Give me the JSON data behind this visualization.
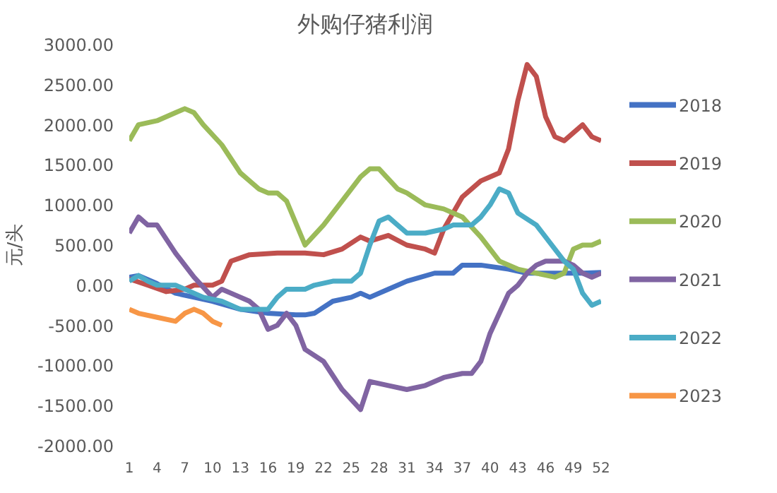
{
  "chart_data": {
    "type": "line",
    "title": "外购仔猪利润",
    "ylabel": "元/头",
    "xlim": [
      1,
      52
    ],
    "xticks": [
      1,
      4,
      7,
      10,
      13,
      16,
      19,
      22,
      25,
      28,
      31,
      34,
      37,
      40,
      43,
      46,
      49,
      52
    ],
    "ylim": [
      -2000,
      3000
    ],
    "yticks": [
      {
        "value": -2000,
        "label": "-2000.00"
      },
      {
        "value": -1500,
        "label": "-1500.00"
      },
      {
        "value": -1000,
        "label": "-1000.00"
      },
      {
        "value": -500,
        "label": "-500.00"
      },
      {
        "value": 0,
        "label": "0.00"
      },
      {
        "value": 500,
        "label": "500.00"
      },
      {
        "value": 1000,
        "label": "1000.00"
      },
      {
        "value": 1500,
        "label": "1500.00"
      },
      {
        "value": 2000,
        "label": "2000.00"
      },
      {
        "value": 2500,
        "label": "2500.00"
      },
      {
        "value": 3000,
        "label": "3000.00"
      }
    ],
    "grid": false,
    "legend": "right",
    "line_style": "solid",
    "marker": "none",
    "series": [
      {
        "name": "2018",
        "color": "#4472c4",
        "x": [
          1,
          2,
          4,
          6,
          8,
          10,
          13,
          16,
          19,
          20,
          21,
          23,
          25,
          26,
          27,
          29,
          31,
          34,
          36,
          37,
          39,
          42,
          44,
          47,
          50,
          52
        ],
        "values": [
          100,
          120,
          20,
          -100,
          -150,
          -200,
          -300,
          -350,
          -370,
          -370,
          -350,
          -200,
          -150,
          -100,
          -150,
          -50,
          50,
          150,
          150,
          250,
          250,
          200,
          150,
          150,
          150,
          160
        ]
      },
      {
        "name": "2019",
        "color": "#c0504d",
        "x": [
          1,
          3,
          5,
          7,
          8,
          10,
          11,
          12,
          14,
          17,
          20,
          22,
          24,
          26,
          27,
          29,
          31,
          33,
          34,
          35,
          37,
          39,
          41,
          42,
          43,
          44,
          45,
          46,
          47,
          48,
          50,
          51,
          52
        ],
        "values": [
          80,
          0,
          -80,
          -50,
          0,
          0,
          50,
          300,
          380,
          400,
          400,
          380,
          450,
          600,
          550,
          620,
          500,
          450,
          400,
          700,
          1100,
          1300,
          1400,
          1700,
          2300,
          2750,
          2600,
          2100,
          1850,
          1800,
          2000,
          1850,
          1800
        ]
      },
      {
        "name": "2020",
        "color": "#9bbb59",
        "x": [
          1,
          2,
          4,
          6,
          7,
          8,
          9,
          11,
          13,
          15,
          16,
          17,
          18,
          20,
          22,
          24,
          26,
          27,
          28,
          30,
          31,
          33,
          35,
          37,
          39,
          41,
          43,
          45,
          47,
          48,
          49,
          50,
          51,
          52
        ],
        "values": [
          1800,
          2000,
          2050,
          2150,
          2200,
          2150,
          2000,
          1750,
          1400,
          1200,
          1150,
          1150,
          1050,
          500,
          750,
          1050,
          1350,
          1450,
          1450,
          1200,
          1150,
          1000,
          950,
          850,
          600,
          300,
          200,
          150,
          100,
          150,
          450,
          500,
          500,
          550
        ]
      },
      {
        "name": "2021",
        "color": "#8064a2",
        "x": [
          1,
          2,
          3,
          4,
          6,
          8,
          10,
          11,
          12,
          14,
          15,
          16,
          17,
          18,
          19,
          20,
          22,
          24,
          26,
          27,
          29,
          31,
          33,
          35,
          37,
          38,
          39,
          40,
          41,
          42,
          43,
          44,
          45,
          46,
          48,
          49,
          50,
          51,
          52
        ],
        "values": [
          650,
          850,
          750,
          750,
          400,
          100,
          -150,
          -50,
          -100,
          -200,
          -300,
          -550,
          -500,
          -350,
          -500,
          -800,
          -950,
          -1300,
          -1550,
          -1200,
          -1250,
          -1300,
          -1250,
          -1150,
          -1100,
          -1100,
          -950,
          -600,
          -350,
          -100,
          0,
          150,
          250,
          300,
          300,
          250,
          150,
          100,
          150
        ]
      },
      {
        "name": "2022",
        "color": "#4bacc6",
        "x": [
          1,
          2,
          3,
          4,
          6,
          7,
          9,
          11,
          13,
          15,
          16,
          17,
          18,
          20,
          21,
          23,
          25,
          26,
          27,
          28,
          29,
          30,
          31,
          33,
          35,
          36,
          38,
          39,
          40,
          41,
          42,
          43,
          45,
          47,
          48,
          49,
          50,
          51,
          52
        ],
        "values": [
          50,
          120,
          50,
          0,
          0,
          -50,
          -150,
          -200,
          -300,
          -300,
          -300,
          -150,
          -50,
          -50,
          0,
          50,
          50,
          150,
          500,
          800,
          850,
          750,
          650,
          650,
          700,
          750,
          750,
          850,
          1000,
          1200,
          1150,
          900,
          750,
          450,
          300,
          200,
          -100,
          -250,
          -200
        ]
      },
      {
        "name": "2023",
        "color": "#f79646",
        "x": [
          1,
          2,
          4,
          6,
          7,
          8,
          9,
          10,
          11
        ],
        "values": [
          -300,
          -350,
          -400,
          -450,
          -350,
          -300,
          -350,
          -450,
          -500
        ]
      }
    ]
  }
}
